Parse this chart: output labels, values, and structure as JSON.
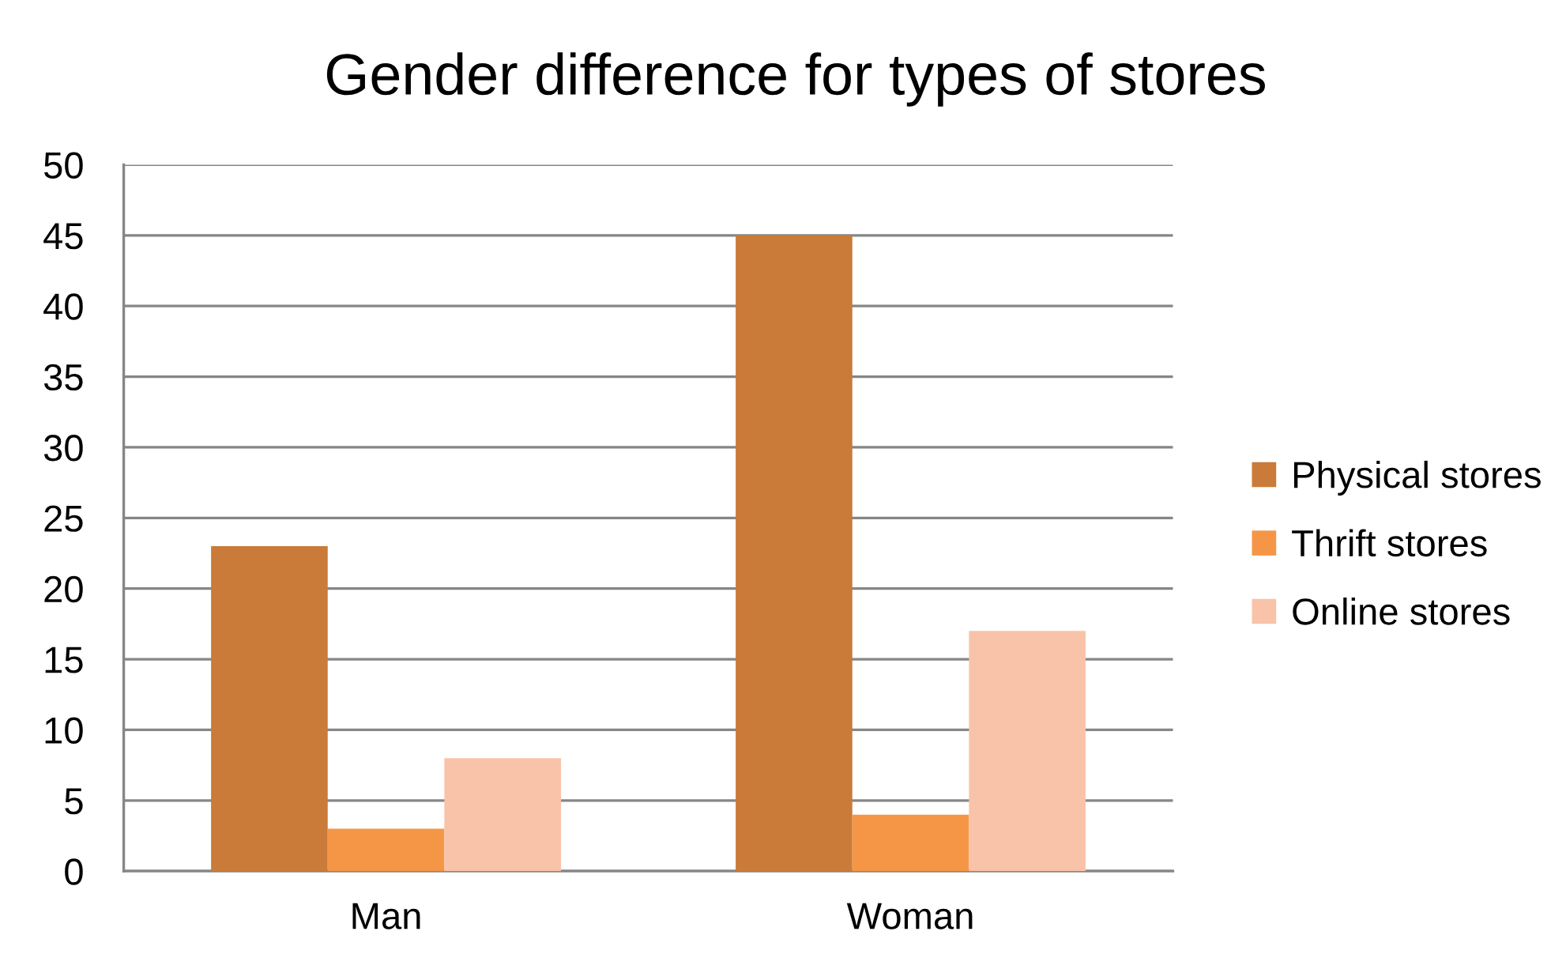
{
  "chart_data": {
    "type": "bar",
    "title": "Gender difference for types of stores",
    "categories": [
      "Man",
      "Woman"
    ],
    "series": [
      {
        "name": "Physical stores",
        "color": "#ca7a39",
        "values": [
          23,
          45
        ]
      },
      {
        "name": "Thrift stores",
        "color": "#f59647",
        "values": [
          3,
          4
        ]
      },
      {
        "name": "Online stores",
        "color": "#f8c3a8",
        "values": [
          8,
          17
        ]
      }
    ],
    "ylim": [
      0,
      50
    ],
    "yticks": [
      0,
      5,
      10,
      15,
      20,
      25,
      30,
      35,
      40,
      45,
      50
    ],
    "grid": "y",
    "legend": "right"
  }
}
